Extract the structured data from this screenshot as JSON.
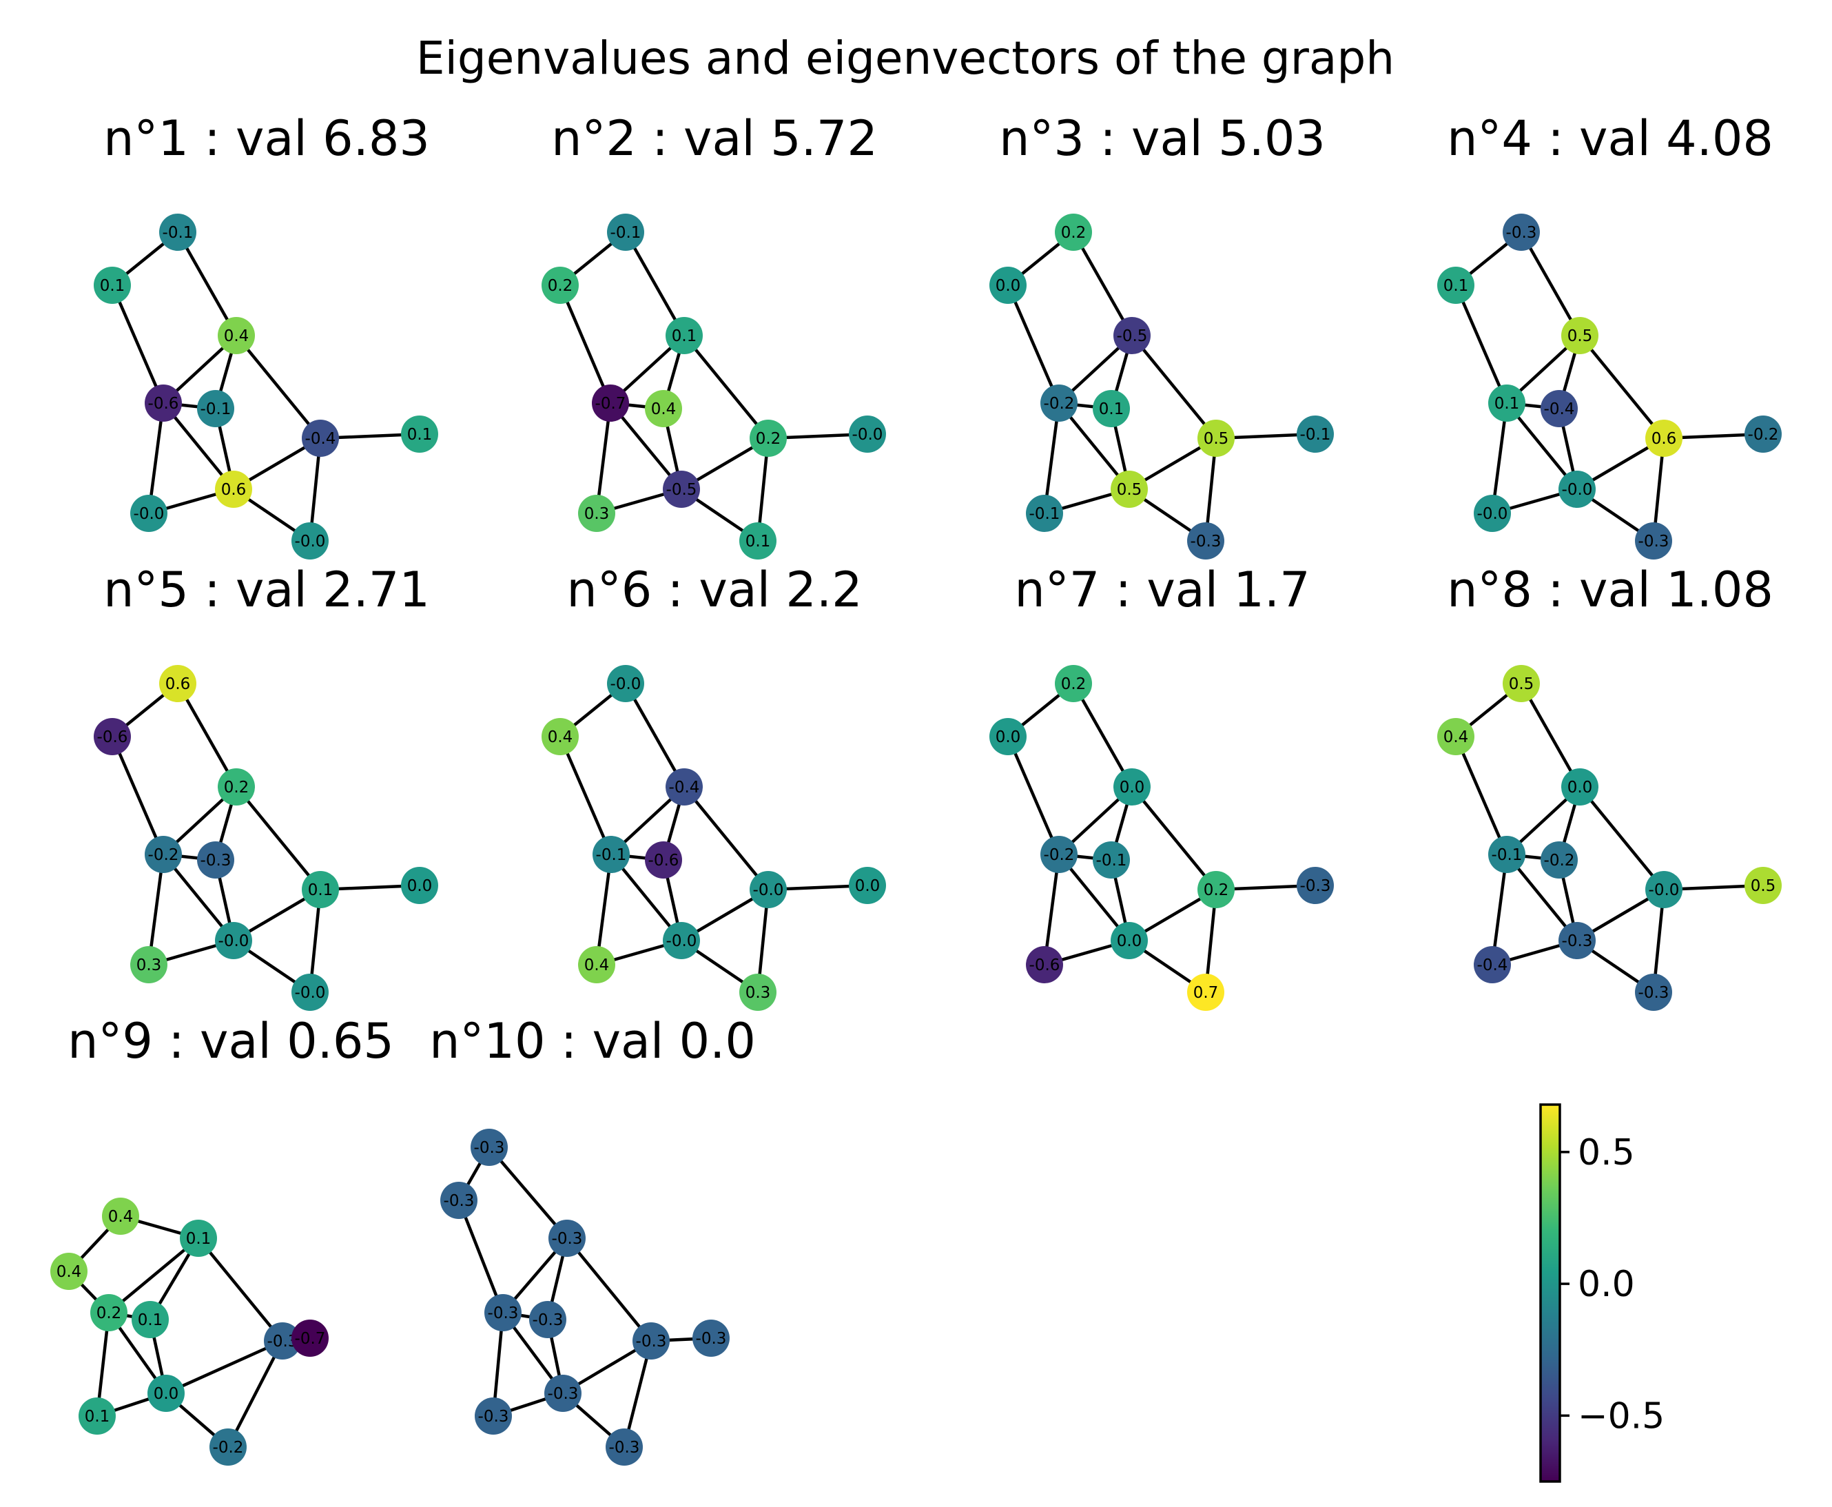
{
  "figure": {
    "suptitle": "Eigenvalues and eigenvectors of the graph"
  },
  "graph": {
    "nodes": [
      "n0",
      "n1",
      "n2",
      "n3",
      "n4",
      "n5",
      "n6",
      "n7",
      "n8",
      "n9"
    ],
    "edges": [
      [
        "n0",
        "n1"
      ],
      [
        "n0",
        "n2"
      ],
      [
        "n1",
        "n3"
      ],
      [
        "n2",
        "n3"
      ],
      [
        "n2",
        "n4"
      ],
      [
        "n2",
        "n5"
      ],
      [
        "n3",
        "n4"
      ],
      [
        "n3",
        "n6"
      ],
      [
        "n3",
        "n7"
      ],
      [
        "n4",
        "n7"
      ],
      [
        "n5",
        "n7"
      ],
      [
        "n5",
        "n8"
      ],
      [
        "n5",
        "n9"
      ],
      [
        "n6",
        "n7"
      ],
      [
        "n7",
        "n8"
      ]
    ]
  },
  "colormap": {
    "name": "viridis",
    "vmin": -0.75,
    "vmax": 0.68,
    "stops": [
      "#440154",
      "#482878",
      "#3e4989",
      "#31688e",
      "#26828e",
      "#1f9e89",
      "#35b779",
      "#6ece58",
      "#b5de2b",
      "#fde725"
    ]
  },
  "colorbar": {
    "ticks": [
      {
        "value": 0.5,
        "label": "0.5"
      },
      {
        "value": 0.0,
        "label": "0.0"
      },
      {
        "value": -0.5,
        "label": "−0.5"
      }
    ]
  },
  "panels": [
    {
      "title": "n°1 : val 6.83",
      "labels": [
        "-0.1",
        "0.1",
        "0.4",
        "-0.6",
        "-0.1",
        "-0.4",
        "-0.0",
        "0.6",
        "-0.0",
        "0.1"
      ],
      "values": [
        -0.1,
        0.1,
        0.4,
        -0.6,
        -0.1,
        -0.4,
        -0.02,
        0.6,
        -0.02,
        0.1
      ]
    },
    {
      "title": "n°2 : val 5.72",
      "labels": [
        "-0.1",
        "0.2",
        "0.1",
        "-0.7",
        "0.4",
        "0.2",
        "0.3",
        "-0.5",
        "0.1",
        "-0.0"
      ],
      "values": [
        -0.1,
        0.2,
        0.1,
        -0.7,
        0.4,
        0.2,
        0.3,
        -0.5,
        0.1,
        -0.02
      ]
    },
    {
      "title": "n°3 : val 5.03",
      "labels": [
        "0.2",
        "0.0",
        "-0.5",
        "-0.2",
        "0.1",
        "0.5",
        "-0.1",
        "0.5",
        "-0.3",
        "-0.1"
      ],
      "values": [
        0.2,
        0.02,
        -0.5,
        -0.2,
        0.1,
        0.5,
        -0.1,
        0.5,
        -0.3,
        -0.1
      ]
    },
    {
      "title": "n°4 : val 4.08",
      "labels": [
        "-0.3",
        "0.1",
        "0.5",
        "0.1",
        "-0.4",
        "0.6",
        "-0.0",
        "-0.0",
        "-0.3",
        "-0.2"
      ],
      "values": [
        -0.3,
        0.1,
        0.5,
        0.1,
        -0.4,
        0.6,
        -0.02,
        -0.02,
        -0.3,
        -0.2
      ]
    },
    {
      "title": "n°5 : val 2.71",
      "labels": [
        "0.6",
        "-0.6",
        "0.2",
        "-0.2",
        "-0.3",
        "0.1",
        "0.3",
        "-0.0",
        "-0.0",
        "0.0"
      ],
      "values": [
        0.6,
        -0.6,
        0.2,
        -0.2,
        -0.3,
        0.1,
        0.3,
        -0.02,
        -0.02,
        0.02
      ]
    },
    {
      "title": "n°6 : val 2.2",
      "labels": [
        "-0.0",
        "0.4",
        "-0.4",
        "-0.1",
        "-0.6",
        "-0.0",
        "0.4",
        "-0.0",
        "0.3",
        "0.0"
      ],
      "values": [
        -0.02,
        0.4,
        -0.4,
        -0.1,
        -0.6,
        -0.02,
        0.4,
        -0.02,
        0.3,
        0.02
      ]
    },
    {
      "title": "n°7 : val 1.7",
      "labels": [
        "0.2",
        "0.0",
        "0.0",
        "-0.2",
        "-0.1",
        "0.2",
        "-0.6",
        "0.0",
        "0.7",
        "-0.3"
      ],
      "values": [
        0.2,
        0.02,
        0.02,
        -0.2,
        -0.1,
        0.2,
        -0.6,
        0.02,
        0.68,
        -0.3
      ]
    },
    {
      "title": "n°8 : val 1.08",
      "labels": [
        "0.5",
        "0.4",
        "0.0",
        "-0.1",
        "-0.2",
        "-0.0",
        "-0.4",
        "-0.3",
        "-0.3",
        "0.5"
      ],
      "values": [
        0.5,
        0.4,
        0.02,
        -0.1,
        -0.2,
        -0.02,
        -0.4,
        -0.3,
        -0.3,
        0.5
      ]
    },
    {
      "title": "n°9 : val 0.65",
      "labels": [
        "0.4",
        "0.4",
        "0.1",
        "0.2",
        "0.1",
        "-0.3",
        "0.1",
        "0.0",
        "-0.2",
        "-0.7"
      ],
      "values": [
        0.4,
        0.4,
        0.1,
        0.2,
        0.1,
        -0.3,
        0.1,
        0.02,
        -0.2,
        -0.75
      ]
    },
    {
      "title": "n°10 : val 0.0",
      "labels": [
        "-0.3",
        "-0.3",
        "-0.3",
        "-0.3",
        "-0.3",
        "-0.3",
        "-0.3",
        "-0.3",
        "-0.3",
        "-0.3"
      ],
      "values": [
        -0.3,
        -0.3,
        -0.3,
        -0.3,
        -0.3,
        -0.3,
        -0.3,
        -0.3,
        -0.3,
        -0.3
      ]
    }
  ]
}
